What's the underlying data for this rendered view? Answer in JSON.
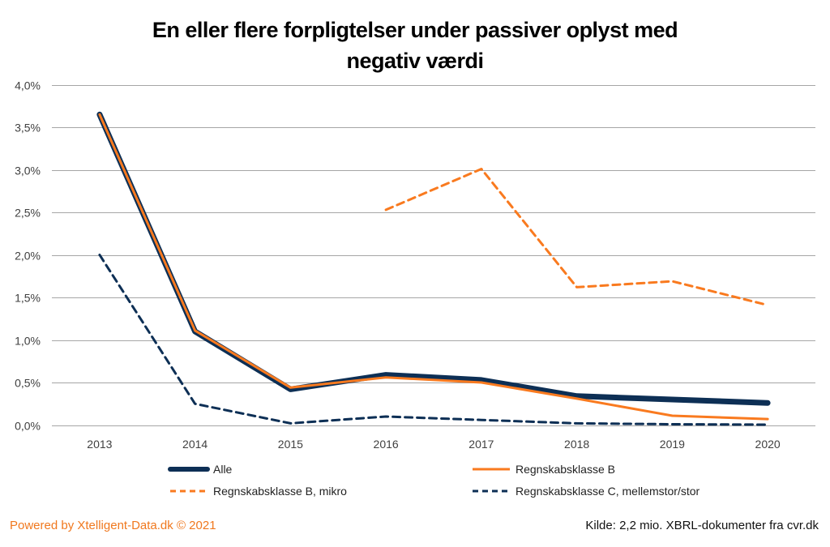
{
  "chart_data": {
    "type": "line",
    "title_lines": [
      "En eller flere forpligtelser under passiver oplyst med",
      "negativ værdi"
    ],
    "xlabel": "",
    "ylabel": "",
    "x": [
      "2013",
      "2014",
      "2015",
      "2016",
      "2017",
      "2018",
      "2019",
      "2020"
    ],
    "ylim": [
      0,
      4.0
    ],
    "yticks": [
      0,
      0.5,
      1.0,
      1.5,
      2.0,
      2.5,
      3.0,
      3.5,
      4.0
    ],
    "ytick_labels": [
      "0,0%",
      "0,5%",
      "1,0%",
      "1,5%",
      "2,0%",
      "2,5%",
      "3,0%",
      "3,5%",
      "4,0%"
    ],
    "y_unit": "%",
    "grid": "horizontal",
    "legend_position": "bottom",
    "series": [
      {
        "name": "Alle",
        "color": "#0d2f55",
        "style": "solid-thick",
        "values": [
          3.65,
          1.1,
          0.42,
          0.59,
          0.53,
          0.34,
          0.3,
          0.26
        ]
      },
      {
        "name": "Regnskabsklasse B",
        "color": "#f97a1f",
        "style": "solid",
        "values": [
          3.65,
          1.11,
          0.44,
          0.56,
          0.5,
          0.31,
          0.11,
          0.07
        ]
      },
      {
        "name": "Regnskabsklasse B, mikro",
        "color": "#f97a1f",
        "style": "dashed",
        "values": [
          null,
          null,
          null,
          2.53,
          3.01,
          1.62,
          1.69,
          1.41
        ]
      },
      {
        "name": "Regnskabsklasse C, mellemstor/stor",
        "color": "#0d2f55",
        "style": "dashed",
        "values": [
          2.0,
          0.25,
          0.02,
          0.1,
          0.06,
          0.02,
          0.01,
          0.005
        ]
      }
    ]
  },
  "footer": {
    "powered_by": "Powered by Xtelligent-Data.dk © 2021",
    "source": "Kilde: 2,2 mio. XBRL-dokumenter fra cvr.dk"
  },
  "colors": {
    "navy": "#0d2f55",
    "orange": "#f97a1f",
    "grid": "#a6a6a6"
  }
}
